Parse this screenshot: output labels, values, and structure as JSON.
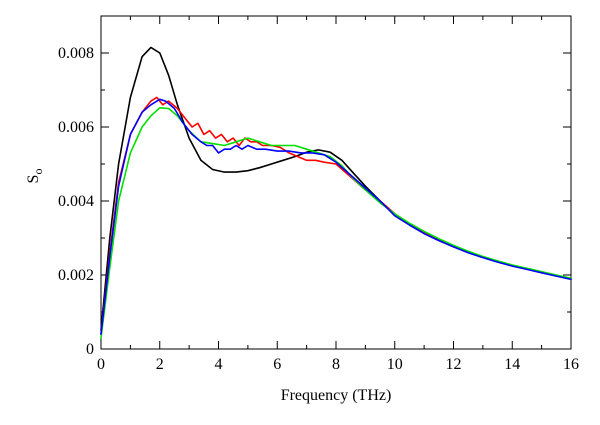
{
  "chart_data": {
    "type": "line",
    "title": "",
    "xlabel": "Frequency (THz)",
    "ylabel": "S",
    "ylabel_subscript": "o",
    "xlim": [
      0,
      16
    ],
    "ylim": [
      0,
      0.009
    ],
    "x_ticks": [
      0,
      2,
      4,
      6,
      8,
      10,
      12,
      14,
      16
    ],
    "y_ticks": [
      0,
      0.002,
      0.004,
      0.006,
      0.008
    ],
    "x_tick_labels": [
      "0",
      "2",
      "4",
      "6",
      "8",
      "10",
      "12",
      "14",
      "16"
    ],
    "y_tick_labels": [
      "0",
      "0.002",
      "0.004",
      "0.006",
      "0.008"
    ],
    "grid": false,
    "legend": "none",
    "series": [
      {
        "color": "#000000",
        "x": [
          0,
          0.3,
          0.6,
          1.0,
          1.4,
          1.7,
          2.0,
          2.3,
          2.6,
          3.0,
          3.4,
          3.8,
          4.2,
          4.6,
          5.0,
          5.4,
          5.8,
          6.2,
          6.6,
          7.0,
          7.4,
          7.8,
          8.2,
          8.6,
          9.0,
          9.5,
          10.0,
          10.5,
          11,
          11.5,
          12,
          12.5,
          13,
          13.5,
          14,
          14.5,
          15,
          15.5,
          16
        ],
        "y": [
          0.0005,
          0.003,
          0.005,
          0.0068,
          0.0079,
          0.00815,
          0.008,
          0.0074,
          0.0066,
          0.0057,
          0.0051,
          0.00485,
          0.00478,
          0.00478,
          0.00482,
          0.0049,
          0.005,
          0.0051,
          0.0052,
          0.00532,
          0.00538,
          0.00532,
          0.0051,
          0.00475,
          0.0044,
          0.004,
          0.00365,
          0.00338,
          0.00315,
          0.00295,
          0.00278,
          0.00262,
          0.00249,
          0.00237,
          0.00226,
          0.00217,
          0.00208,
          0.00199,
          0.0019
        ]
      },
      {
        "color": "#ff0000",
        "x": [
          0,
          0.3,
          0.6,
          1.0,
          1.4,
          1.7,
          1.9,
          2.1,
          2.3,
          2.6,
          2.9,
          3.1,
          3.3,
          3.5,
          3.7,
          3.9,
          4.1,
          4.3,
          4.5,
          4.7,
          4.9,
          5.1,
          5.3,
          5.5,
          5.8,
          6.1,
          6.4,
          6.7,
          7.0,
          7.3,
          7.6,
          8.0,
          8.5,
          9.0,
          9.5,
          10.0,
          10.5,
          11,
          11.5,
          12,
          12.5,
          13,
          13.5,
          14,
          14.5,
          15,
          15.5,
          16
        ],
        "y": [
          0.0004,
          0.0026,
          0.0045,
          0.0058,
          0.0064,
          0.0067,
          0.0068,
          0.0066,
          0.0067,
          0.0065,
          0.0062,
          0.006,
          0.0061,
          0.0058,
          0.0059,
          0.0057,
          0.0058,
          0.0056,
          0.0057,
          0.0055,
          0.0057,
          0.0056,
          0.0056,
          0.0055,
          0.0055,
          0.00545,
          0.0053,
          0.0052,
          0.0051,
          0.0051,
          0.00505,
          0.005,
          0.00465,
          0.0043,
          0.004,
          0.00365,
          0.00338,
          0.00315,
          0.00295,
          0.00278,
          0.00262,
          0.00249,
          0.00237,
          0.00226,
          0.00217,
          0.00208,
          0.00199,
          0.0019
        ]
      },
      {
        "color": "#00e000",
        "x": [
          0,
          0.3,
          0.6,
          1.0,
          1.4,
          1.7,
          2.0,
          2.3,
          2.6,
          3.0,
          3.4,
          3.8,
          4.2,
          4.6,
          5.0,
          5.4,
          5.8,
          6.2,
          6.6,
          7.0,
          7.4,
          7.8,
          8.2,
          8.6,
          9.0,
          9.5,
          10.0,
          10.5,
          11,
          11.5,
          12,
          12.5,
          13,
          13.5,
          14,
          14.5,
          15,
          15.5,
          16
        ],
        "y": [
          0.0003,
          0.0022,
          0.004,
          0.0053,
          0.006,
          0.0063,
          0.00652,
          0.0065,
          0.0063,
          0.0059,
          0.0056,
          0.00555,
          0.0055,
          0.0056,
          0.0057,
          0.0056,
          0.0055,
          0.0055,
          0.0055,
          0.0054,
          0.0053,
          0.0052,
          0.00495,
          0.0046,
          0.0043,
          0.00395,
          0.00365,
          0.0034,
          0.00318,
          0.00298,
          0.0028,
          0.00264,
          0.0025,
          0.00238,
          0.00227,
          0.00218,
          0.00209,
          0.002,
          0.00191
        ]
      },
      {
        "color": "#0000ff",
        "x": [
          0,
          0.3,
          0.6,
          1.0,
          1.4,
          1.7,
          2.0,
          2.2,
          2.5,
          2.8,
          3.1,
          3.4,
          3.6,
          3.8,
          4.0,
          4.2,
          4.4,
          4.6,
          4.8,
          5.0,
          5.3,
          5.6,
          6.0,
          6.4,
          6.8,
          7.2,
          7.6,
          8.0,
          8.5,
          9.0,
          9.5,
          10.0,
          10.5,
          11,
          11.5,
          12,
          12.5,
          13,
          13.5,
          14,
          14.5,
          15,
          15.5,
          16
        ],
        "y": [
          0.0004,
          0.0025,
          0.0044,
          0.0058,
          0.0064,
          0.0066,
          0.00675,
          0.0067,
          0.0065,
          0.0061,
          0.0058,
          0.0056,
          0.0055,
          0.0055,
          0.0053,
          0.0054,
          0.0054,
          0.0055,
          0.0054,
          0.0055,
          0.0054,
          0.0054,
          0.00535,
          0.00535,
          0.0053,
          0.0053,
          0.00525,
          0.00505,
          0.0047,
          0.00435,
          0.004,
          0.0036,
          0.00335,
          0.00312,
          0.00293,
          0.00276,
          0.0026,
          0.00247,
          0.00235,
          0.00224,
          0.00215,
          0.00206,
          0.00197,
          0.00188
        ]
      }
    ]
  }
}
